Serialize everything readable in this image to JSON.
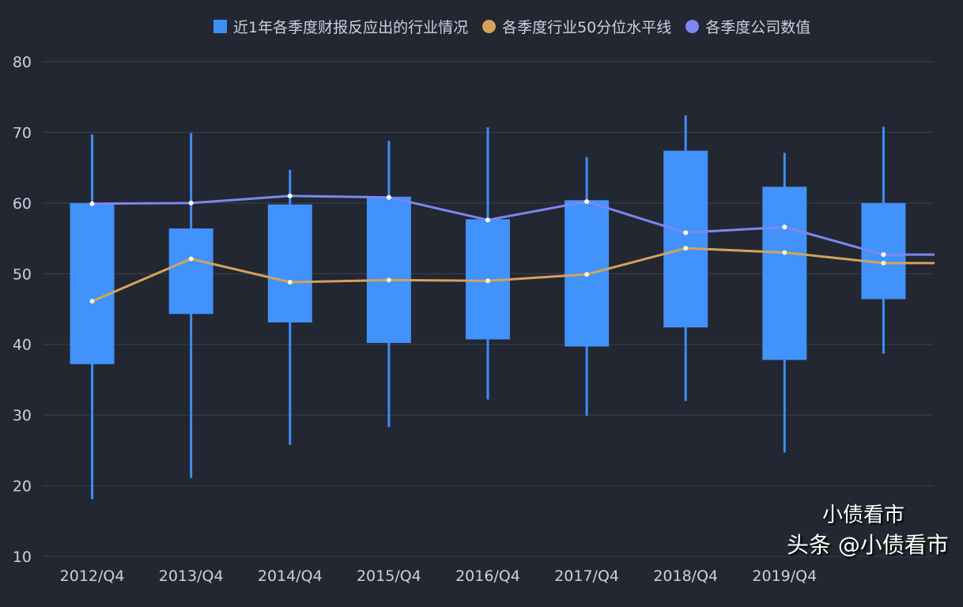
{
  "chart_data": {
    "type": "boxplot",
    "title": "",
    "xlabel": "",
    "ylabel": "",
    "ylim": [
      10,
      80
    ],
    "yticks": [
      10,
      20,
      30,
      40,
      50,
      60,
      70,
      80
    ],
    "grid": true,
    "legend_position": "top",
    "categories": [
      "2012/Q4",
      "2013/Q4",
      "2014/Q4",
      "2015/Q4",
      "2016/Q4",
      "2017/Q4",
      "2018/Q4",
      "2019/Q4",
      ""
    ],
    "boxes": {
      "name": "近1年各季度财报反应出的行业情况",
      "color": "#3d8ef5",
      "min": [
        18.1,
        21.1,
        25.8,
        28.3,
        32.2,
        29.9,
        32.0,
        24.7,
        38.7
      ],
      "q1": [
        37.2,
        44.3,
        43.1,
        40.2,
        40.7,
        39.7,
        42.4,
        37.8,
        46.4
      ],
      "q3": [
        60.0,
        56.4,
        59.8,
        60.9,
        57.7,
        60.4,
        67.4,
        62.3,
        60.0
      ],
      "max": [
        69.7,
        69.9,
        64.7,
        68.8,
        70.7,
        66.5,
        72.4,
        67.1,
        70.8
      ]
    },
    "series": [
      {
        "name": "各季度行业50分位水平线",
        "color": "#d4a25c",
        "values": [
          46.1,
          52.1,
          48.8,
          49.1,
          49.0,
          49.9,
          53.6,
          53.0,
          51.5
        ]
      },
      {
        "name": "各季度公司数值",
        "color": "#7e86f0",
        "values": [
          59.9,
          60.0,
          61.0,
          60.8,
          57.6,
          60.2,
          55.8,
          56.6,
          52.7
        ]
      }
    ]
  },
  "watermark": {
    "line1": "小债看市",
    "line2": "头条 @小债看市"
  }
}
